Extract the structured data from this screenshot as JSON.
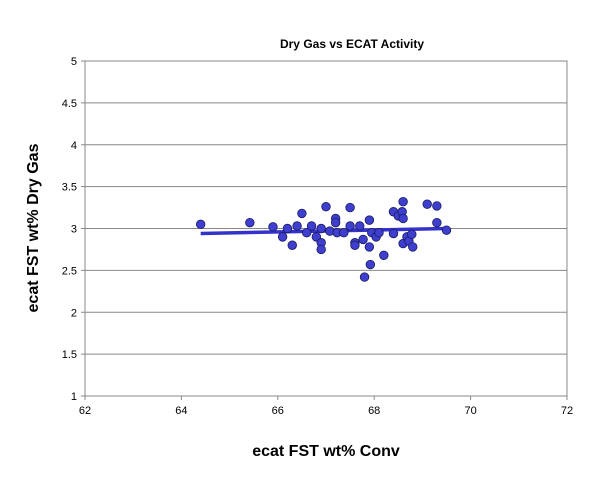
{
  "chart_data": {
    "type": "scatter",
    "title": "Dry Gas vs ECAT Activity",
    "xlabel": "ecat FST wt% Conv",
    "ylabel": "ecat FST wt% Dry Gas",
    "xlim": [
      62,
      72
    ],
    "ylim": [
      1,
      5
    ],
    "xticks": [
      62,
      64,
      66,
      68,
      70,
      72
    ],
    "yticks": [
      1,
      1.5,
      2,
      2.5,
      3,
      3.5,
      4,
      4.5,
      5
    ],
    "grid": "horizontal",
    "legend": "none",
    "point_color": "#3f3fcf",
    "trend_color": "#3333cc",
    "trendline": {
      "x": [
        64.4,
        69.5
      ],
      "y": [
        2.94,
        3.0
      ]
    },
    "points": [
      [
        64.4,
        3.05
      ],
      [
        65.42,
        3.07
      ],
      [
        65.9,
        3.02
      ],
      [
        66.1,
        2.9
      ],
      [
        66.2,
        3.0
      ],
      [
        66.3,
        2.8
      ],
      [
        66.4,
        3.03
      ],
      [
        66.5,
        3.18
      ],
      [
        66.6,
        2.95
      ],
      [
        66.7,
        3.03
      ],
      [
        66.8,
        2.9
      ],
      [
        66.9,
        2.83
      ],
      [
        66.9,
        2.75
      ],
      [
        66.9,
        3.0
      ],
      [
        67.0,
        3.26
      ],
      [
        67.08,
        2.97
      ],
      [
        67.2,
        3.12
      ],
      [
        67.2,
        3.07
      ],
      [
        67.23,
        2.95
      ],
      [
        67.37,
        2.95
      ],
      [
        67.5,
        3.03
      ],
      [
        67.5,
        3.25
      ],
      [
        67.6,
        2.83
      ],
      [
        67.6,
        2.8
      ],
      [
        67.7,
        3.03
      ],
      [
        67.77,
        2.87
      ],
      [
        67.8,
        2.42
      ],
      [
        67.9,
        3.1
      ],
      [
        67.9,
        2.78
      ],
      [
        67.92,
        2.57
      ],
      [
        67.95,
        2.95
      ],
      [
        68.04,
        2.9
      ],
      [
        68.1,
        2.95
      ],
      [
        68.2,
        2.68
      ],
      [
        68.4,
        2.94
      ],
      [
        68.4,
        3.2
      ],
      [
        68.5,
        3.15
      ],
      [
        68.58,
        3.2
      ],
      [
        68.6,
        3.32
      ],
      [
        68.6,
        3.12
      ],
      [
        68.6,
        2.82
      ],
      [
        68.68,
        2.9
      ],
      [
        68.72,
        2.85
      ],
      [
        68.78,
        2.93
      ],
      [
        68.8,
        2.78
      ],
      [
        69.1,
        3.29
      ],
      [
        69.3,
        3.27
      ],
      [
        69.3,
        3.07
      ],
      [
        69.5,
        2.98
      ]
    ]
  }
}
